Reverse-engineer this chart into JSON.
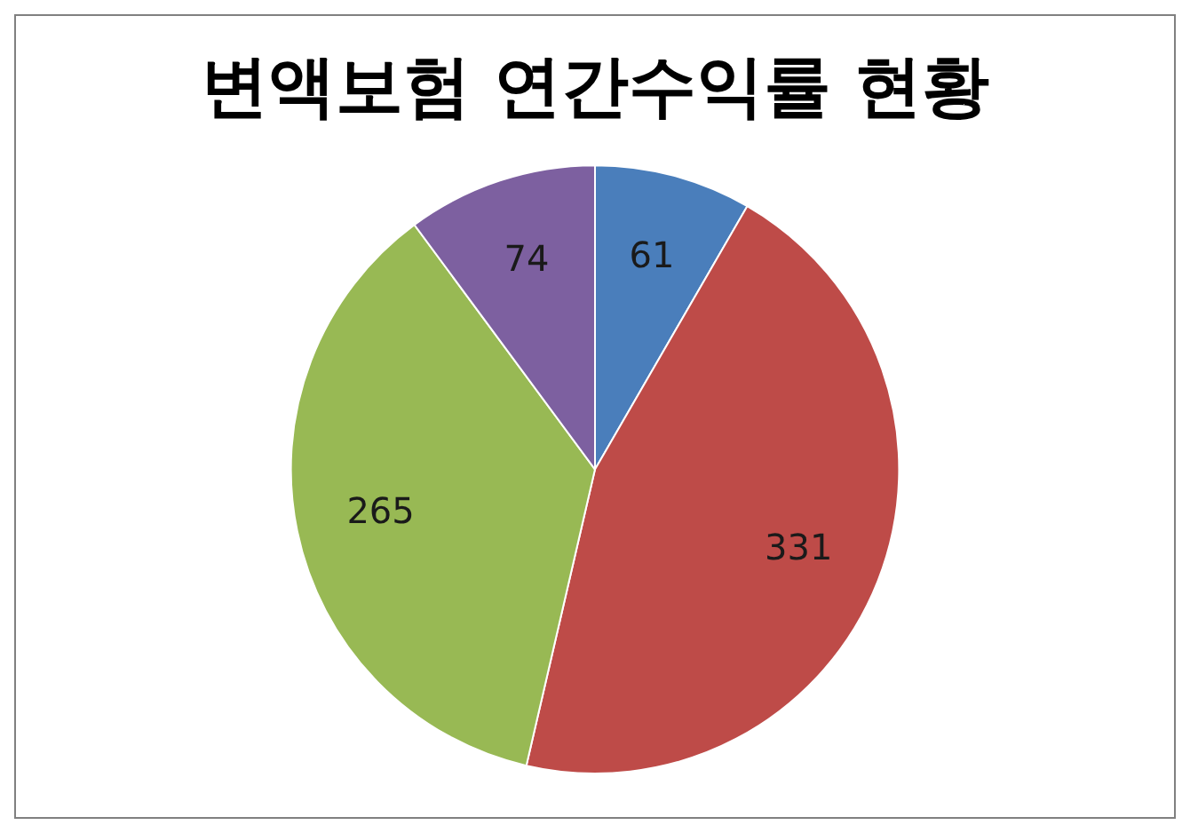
{
  "chart_data": {
    "type": "pie",
    "title": "변액보험 연간수익률 현황",
    "categories": [
      null,
      null,
      null,
      null
    ],
    "values": [
      61,
      331,
      265,
      74
    ],
    "colors": [
      "#4a7ebb",
      "#be4b48",
      "#98b954",
      "#7d60a0"
    ],
    "data_labels": true,
    "legend": false
  }
}
